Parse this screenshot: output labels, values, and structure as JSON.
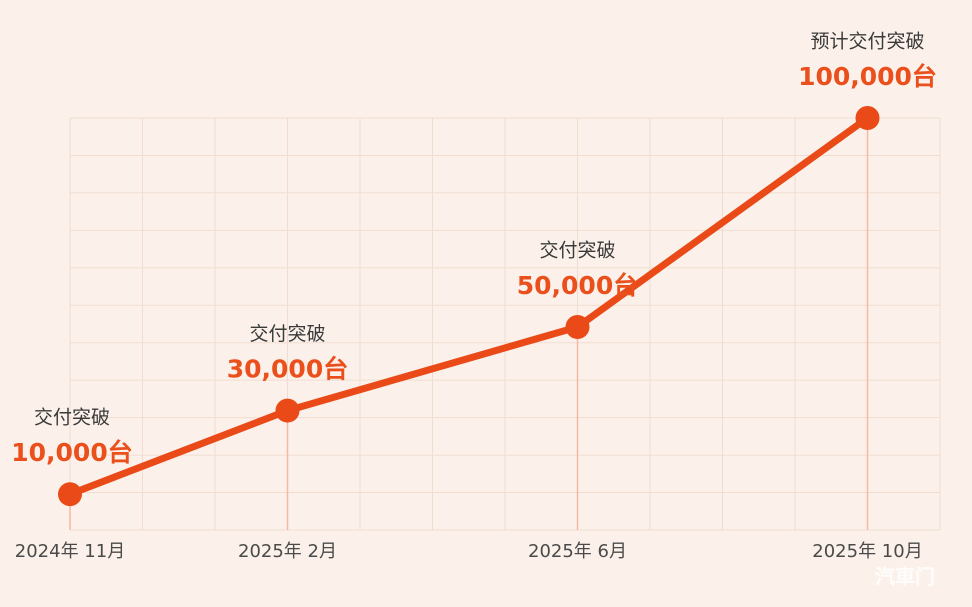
{
  "chart_data": {
    "type": "line",
    "x": [
      "2024-11",
      "2025-02",
      "2025-06",
      "2025-10"
    ],
    "values": [
      10000,
      30000,
      50000,
      100000
    ],
    "value_labels": [
      "10,000台",
      "30,000台",
      "50,000台",
      "100,000台"
    ],
    "annotations": [
      "交付突破",
      "交付突破",
      "交付突破",
      "预计交付突破"
    ],
    "xticks": [
      {
        "value": "2024-11",
        "label": "2024年 11月"
      },
      {
        "value": "2025-02",
        "label": "2025年 2月"
      },
      {
        "value": "2025-06",
        "label": "2025年 6月"
      },
      {
        "value": "2025-10",
        "label": "2025年 10月"
      }
    ],
    "xlim": [
      "2024-11",
      "2025-11"
    ],
    "ylim": [
      0,
      100000
    ],
    "color": "#ea4a17",
    "grid": true,
    "watermark": "汽車门"
  }
}
